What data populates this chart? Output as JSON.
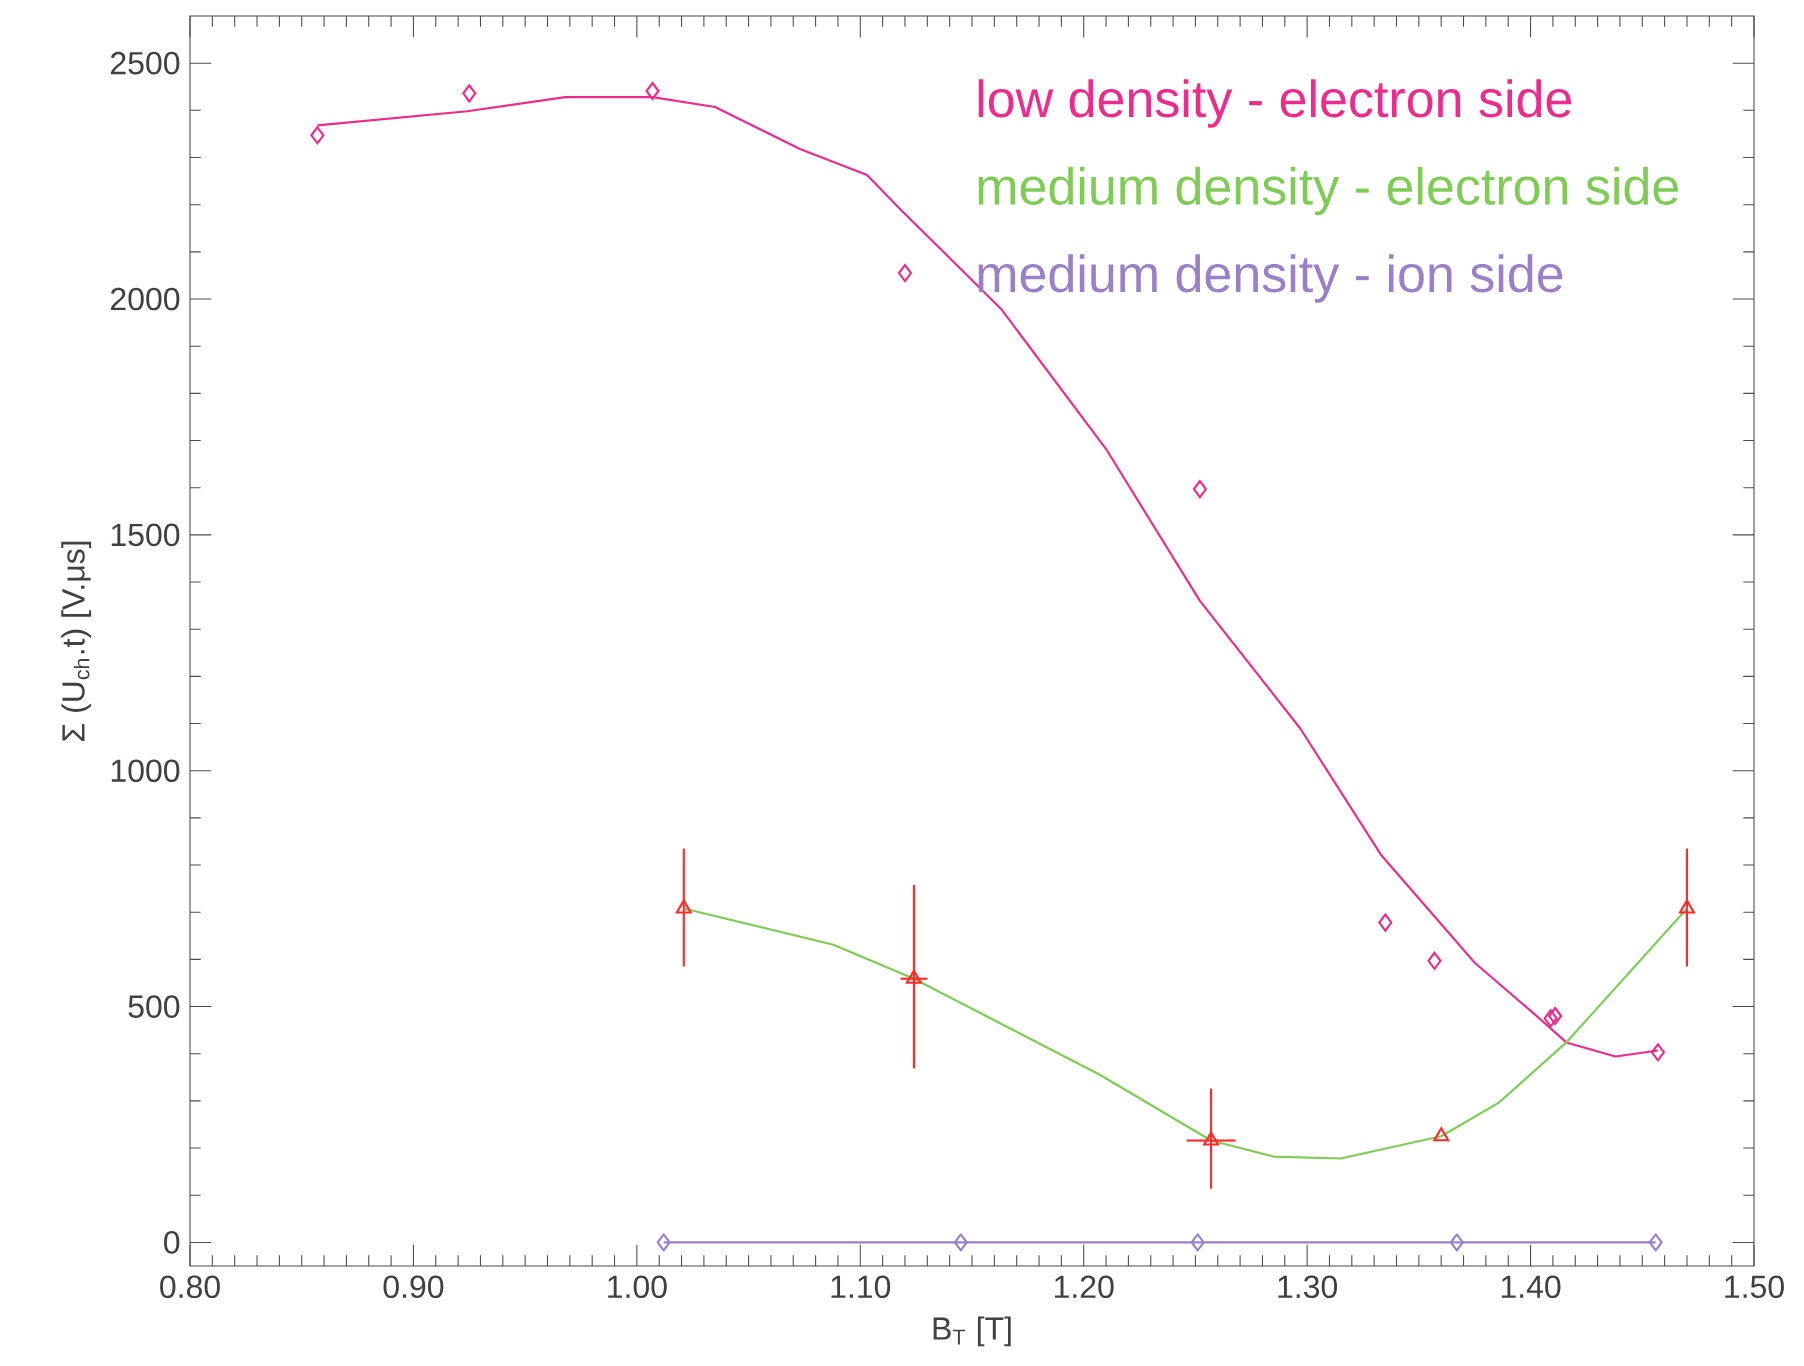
{
  "chart_data": {
    "type": "scatter",
    "xlabel": "B$_{T}$ [T]",
    "ylabel": "Σ (U$_{ch}$.t) [V.μs]",
    "xlim": [
      0.8,
      1.5
    ],
    "ylim": [
      -50,
      2600
    ],
    "xticks": [
      {
        "value": 0.8,
        "label": "0.80"
      },
      {
        "value": 0.9,
        "label": "0.90"
      },
      {
        "value": 1.0,
        "label": "1.00"
      },
      {
        "value": 1.1,
        "label": "1.10"
      },
      {
        "value": 1.2,
        "label": "1.20"
      },
      {
        "value": 1.3,
        "label": "1.30"
      },
      {
        "value": 1.4,
        "label": "1.40"
      },
      {
        "value": 1.5,
        "label": "1.50"
      }
    ],
    "yticks": [
      0,
      500,
      1000,
      1500,
      2000,
      2500
    ],
    "legend": "top right",
    "grid": false,
    "series": [
      {
        "name": "low density - electron side",
        "marker": "diamond",
        "color": "#ee2a8a",
        "x": [
          0.857,
          0.925,
          1.007,
          1.12,
          1.252,
          1.335,
          1.357,
          1.409,
          1.411,
          1.457
        ],
        "values": [
          2347,
          2436,
          2441,
          2055,
          1597,
          678,
          597,
          475,
          480,
          403
        ]
      },
      {
        "type": "line",
        "marker": "none",
        "color": "#ee2a8a",
        "x": [
          0.857,
          0.924,
          0.968,
          1.007,
          1.035,
          1.073,
          1.103,
          1.118,
          1.163,
          1.21,
          1.252,
          1.297,
          1.333,
          1.375,
          1.402,
          1.416,
          1.438,
          1.457
        ],
        "values": [
          2368,
          2398,
          2428,
          2428,
          2407,
          2318,
          2263,
          2190,
          1979,
          1682,
          1360,
          1089,
          822,
          593,
          483,
          424,
          394,
          407
        ]
      },
      {
        "name": "medium density - electron side",
        "type": "line",
        "marker": "none",
        "color": "#7fcc55",
        "x": [
          1.021,
          1.088,
          1.124,
          1.207,
          1.257,
          1.285,
          1.315,
          1.36,
          1.386,
          1.416,
          1.47
        ],
        "values": [
          708,
          631,
          559,
          356,
          216,
          182,
          178,
          225,
          297,
          424,
          708
        ]
      },
      {
        "marker": "triangle",
        "color": "#ff2a2a",
        "x": [
          1.021,
          1.124,
          1.257,
          1.36,
          1.47
        ],
        "values": [
          708,
          559,
          216,
          225,
          708
        ],
        "errors": [
          [
            585,
            835
          ],
          [
            369,
            758
          ],
          [
            114,
            326
          ],
          null,
          [
            585,
            835
          ]
        ],
        "xerrors": [
          null,
          0.006,
          0.011,
          null,
          null
        ]
      },
      {
        "name": "medium density - ion side",
        "type": "line",
        "marker": "diamond",
        "color": "#9a80c8",
        "x": [
          1.012,
          1.145,
          1.251,
          1.367,
          1.456
        ],
        "values": [
          0,
          0,
          0,
          0,
          0
        ]
      }
    ]
  }
}
